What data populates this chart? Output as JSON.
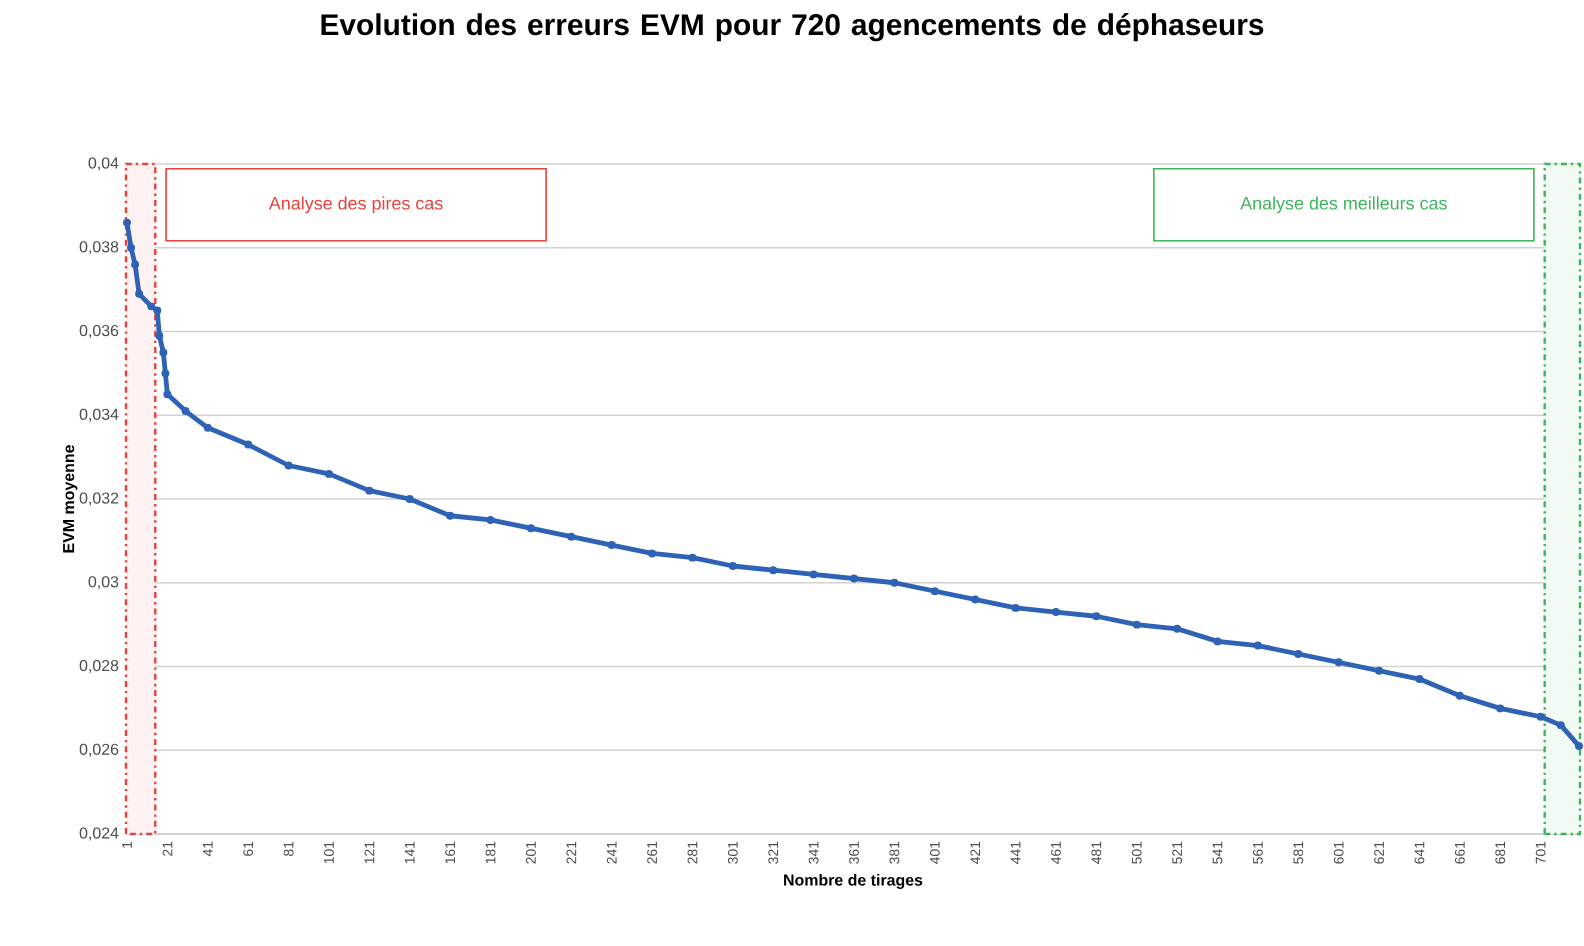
{
  "chart_data": {
    "type": "line",
    "title": "Evolution des erreurs EVM pour 720 agencements de déphaseurs",
    "xlabel": "Nombre de tirages",
    "ylabel": "EVM moyenne",
    "xlim": [
      0.5,
      720.5
    ],
    "xticks": [
      1,
      21,
      41,
      61,
      81,
      101,
      121,
      141,
      161,
      181,
      201,
      221,
      241,
      261,
      281,
      301,
      321,
      341,
      361,
      381,
      401,
      421,
      441,
      461,
      481,
      501,
      521,
      541,
      561,
      581,
      601,
      621,
      641,
      661,
      681,
      701
    ],
    "ylim": [
      0.024,
      0.04
    ],
    "yticks": [
      {
        "value": 0.024,
        "label": "0,024"
      },
      {
        "value": 0.026,
        "label": "0,026"
      },
      {
        "value": 0.028,
        "label": "0,028"
      },
      {
        "value": 0.03,
        "label": "0,03"
      },
      {
        "value": 0.032,
        "label": "0,032"
      },
      {
        "value": 0.034,
        "label": "0,034"
      },
      {
        "value": 0.036,
        "label": "0,036"
      },
      {
        "value": 0.038,
        "label": "0,038"
      },
      {
        "value": 0.04,
        "label": "0,04"
      }
    ],
    "grid": "y",
    "marker": "circle",
    "line_style": "solid",
    "series": [
      {
        "color": "#2e62b5",
        "x": [
          1,
          3,
          5,
          7,
          13,
          16,
          17,
          19,
          20,
          21,
          30,
          41,
          61,
          81,
          101,
          121,
          141,
          161,
          181,
          201,
          221,
          241,
          261,
          281,
          301,
          321,
          341,
          361,
          381,
          401,
          421,
          441,
          461,
          481,
          501,
          521,
          541,
          561,
          581,
          601,
          621,
          641,
          661,
          681,
          701,
          711,
          720
        ],
        "values": [
          0.0386,
          0.038,
          0.0376,
          0.0369,
          0.0366,
          0.0365,
          0.0359,
          0.0355,
          0.035,
          0.0345,
          0.0341,
          0.0337,
          0.0333,
          0.0328,
          0.0326,
          0.0322,
          0.032,
          0.0316,
          0.0315,
          0.0313,
          0.0311,
          0.0309,
          0.0307,
          0.0306,
          0.0304,
          0.0303,
          0.0302,
          0.0301,
          0.03,
          0.0298,
          0.0296,
          0.0294,
          0.0293,
          0.0292,
          0.029,
          0.0289,
          0.0286,
          0.0285,
          0.0283,
          0.0281,
          0.0279,
          0.0277,
          0.0273,
          0.027,
          0.0268,
          0.0266,
          0.0261
        ]
      }
    ],
    "bands": [
      {
        "axis": "x",
        "from": 0.5,
        "to": 15,
        "label": "Analyse des pires cas",
        "color": "#e8423c"
      },
      {
        "axis": "x",
        "from": 703,
        "to": 720.5,
        "label": "Analyse des meilleurs cas",
        "color": "#3cb55a"
      }
    ]
  }
}
